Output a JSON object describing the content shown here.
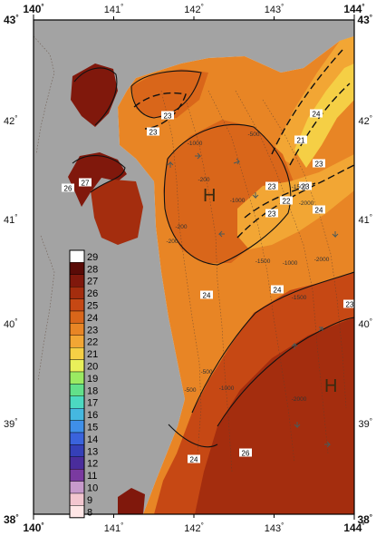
{
  "axes": {
    "lon_ticks": [
      "140",
      "141",
      "142",
      "143",
      "144"
    ],
    "lat_ticks": [
      "43",
      "42",
      "41",
      "40",
      "39",
      "38"
    ],
    "degree_symbol": "°"
  },
  "map": {
    "extent": {
      "lon": [
        140,
        144
      ],
      "lat": [
        38,
        43
      ]
    },
    "land_color": "#a3a3a3",
    "high_labels": [
      "H",
      "H"
    ],
    "sst_contours": [
      "23",
      "23",
      "21",
      "23",
      "24",
      "23",
      "22",
      "23",
      "24",
      "23",
      "27",
      "26",
      "24",
      "24",
      "23",
      "26",
      "24"
    ],
    "depth_labels": [
      "-1000",
      "-500",
      "-200",
      "-1000",
      "-1500",
      "-2000",
      "-200",
      "-1500",
      "-1000",
      "-1500",
      "-2000",
      "-500",
      "-1000",
      "-2000",
      "-200",
      "-500"
    ]
  },
  "colorbar": {
    "levels": [
      "29",
      "28",
      "27",
      "26",
      "25",
      "24",
      "23",
      "22",
      "21",
      "20",
      "19",
      "18",
      "17",
      "16",
      "15",
      "14",
      "13",
      "12",
      "11",
      "10",
      "9",
      "8"
    ],
    "colors": [
      "#ffffff",
      "#5a0b07",
      "#80180c",
      "#a42d0e",
      "#c64814",
      "#d9661a",
      "#e88525",
      "#f2a634",
      "#f5cf45",
      "#e9f05a",
      "#9bea62",
      "#62e08a",
      "#4cd9c1",
      "#45b8e0",
      "#3f8fe8",
      "#3a63dc",
      "#3540b8",
      "#4a2d9c",
      "#7a3aa0",
      "#c79acb",
      "#f3c6cf",
      "#ffe6e6"
    ]
  }
}
